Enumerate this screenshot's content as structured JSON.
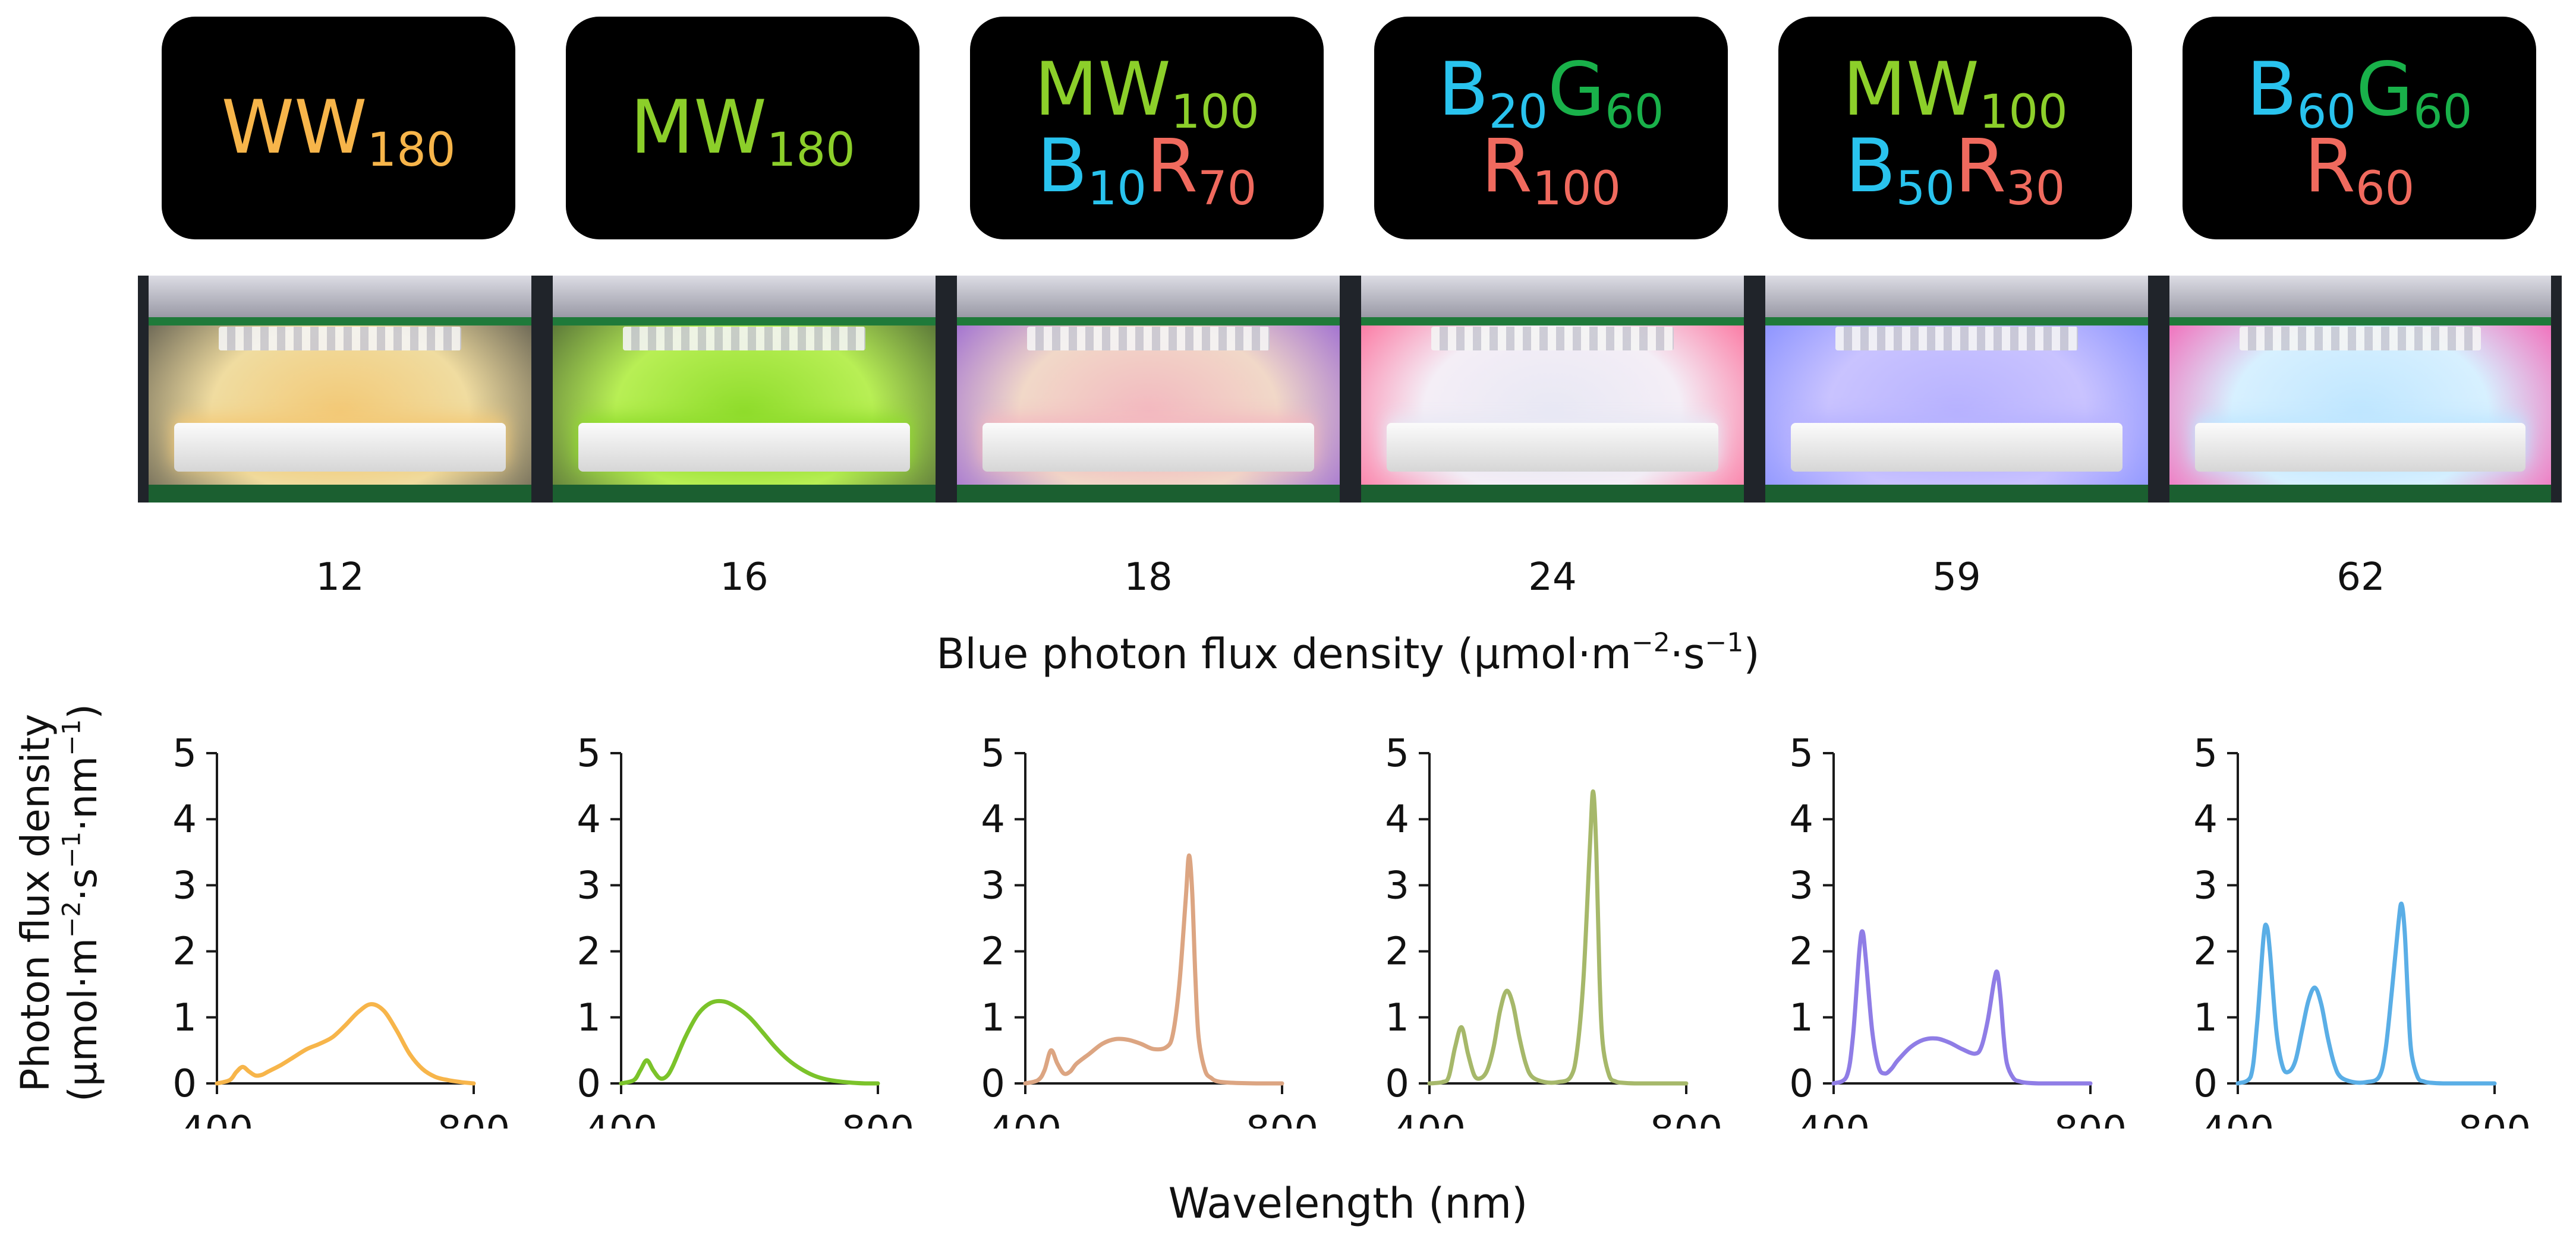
{
  "treatments": [
    {
      "lines": [
        [
          {
            "text": "WW",
            "sub": "180",
            "color": "#f7b54a"
          }
        ]
      ]
    },
    {
      "lines": [
        [
          {
            "text": "MW",
            "sub": "180",
            "color": "#8ccf2a"
          }
        ]
      ]
    },
    {
      "lines": [
        [
          {
            "text": "MW",
            "sub": "100",
            "color": "#8ccf2a"
          }
        ],
        [
          {
            "text": "B",
            "sub": "10",
            "color": "#29c3ee"
          },
          {
            "text": "R",
            "sub": "70",
            "color": "#f06a5e"
          }
        ]
      ]
    },
    {
      "lines": [
        [
          {
            "text": "B",
            "sub": "20",
            "color": "#29c3ee"
          },
          {
            "text": "G",
            "sub": "60",
            "color": "#19b14a"
          }
        ],
        [
          {
            "text": "R",
            "sub": "100",
            "color": "#f06a5e"
          }
        ]
      ]
    },
    {
      "lines": [
        [
          {
            "text": "MW",
            "sub": "100",
            "color": "#8ccf2a"
          }
        ],
        [
          {
            "text": "B",
            "sub": "50",
            "color": "#29c3ee"
          },
          {
            "text": "R",
            "sub": "30",
            "color": "#f06a5e"
          }
        ]
      ]
    },
    {
      "lines": [
        [
          {
            "text": "B",
            "sub": "60",
            "color": "#29c3ee"
          },
          {
            "text": "G",
            "sub": "60",
            "color": "#19b14a"
          }
        ],
        [
          {
            "text": "R",
            "sub": "60",
            "color": "#f06a5e"
          }
        ]
      ]
    }
  ],
  "photos": [
    {
      "wall": "#f0dca0",
      "glow": "#f3c977",
      "side": "#2a2d30"
    },
    {
      "wall": "#b8ef55",
      "glow": "#8fdc2c",
      "side": "#2b3a2a"
    },
    {
      "wall": "#f1d8c8",
      "glow": "#f3b9c0",
      "side": "#7a3fd6"
    },
    {
      "wall": "#f4eef6",
      "glow": "#e8e8f4",
      "side": "#ff3f7a"
    },
    {
      "wall": "#c9c3ff",
      "glow": "#b7b2ff",
      "side": "#6e7cff"
    },
    {
      "wall": "#d7f0ff",
      "glow": "#bfe6ff",
      "side": "#ff2f9a"
    }
  ],
  "blue_pfd_values": [
    "12",
    "16",
    "18",
    "24",
    "59",
    "62"
  ],
  "blue_pfd_caption": {
    "text": "Blue photon flux density (µmol·m",
    "exp1": "−2",
    "mid": "·s",
    "exp2": "−1",
    "end": ")"
  },
  "y_axis_label": {
    "line1": "Photon flux density",
    "line2_pre": "(µmol·m",
    "line2_exp1": "−2",
    "line2_mid": "·s",
    "line2_exp2": "−1",
    "line2_mid2": "·nm",
    "line2_exp3": "−1",
    "line2_end": ")"
  },
  "x_axis_label": "Wavelength (nm)",
  "chart_data": [
    {
      "type": "line",
      "name": "WW180",
      "color": "#f7b54a",
      "xlim": [
        400,
        800
      ],
      "ylim": [
        0,
        5
      ],
      "xticks": [
        "400",
        "800"
      ],
      "yticks": [
        "0",
        "1",
        "2",
        "3",
        "4",
        "5"
      ],
      "x": [
        400,
        420,
        430,
        440,
        450,
        460,
        470,
        480,
        500,
        520,
        540,
        560,
        580,
        600,
        620,
        640,
        660,
        680,
        700,
        720,
        740,
        760,
        780,
        800
      ],
      "y": [
        0,
        0.05,
        0.17,
        0.25,
        0.18,
        0.12,
        0.13,
        0.18,
        0.28,
        0.4,
        0.52,
        0.6,
        0.7,
        0.88,
        1.08,
        1.2,
        1.1,
        0.8,
        0.45,
        0.22,
        0.1,
        0.05,
        0.02,
        0
      ]
    },
    {
      "type": "line",
      "name": "MW180",
      "color": "#7bc32a",
      "xlim": [
        400,
        800
      ],
      "ylim": [
        0,
        5
      ],
      "xticks": [
        "400",
        "800"
      ],
      "yticks": [
        "0",
        "1",
        "2",
        "3",
        "4",
        "5"
      ],
      "x": [
        400,
        420,
        430,
        440,
        450,
        460,
        470,
        480,
        500,
        520,
        540,
        560,
        580,
        600,
        620,
        640,
        660,
        680,
        700,
        720,
        740,
        760,
        780,
        800
      ],
      "y": [
        0,
        0.05,
        0.2,
        0.35,
        0.2,
        0.08,
        0.1,
        0.25,
        0.7,
        1.05,
        1.22,
        1.24,
        1.15,
        1.0,
        0.78,
        0.55,
        0.36,
        0.22,
        0.12,
        0.06,
        0.03,
        0.01,
        0,
        0
      ]
    },
    {
      "type": "line",
      "name": "MW100 B10R70",
      "color": "#dca582",
      "xlim": [
        400,
        800
      ],
      "ylim": [
        0,
        5
      ],
      "xticks": [
        "400",
        "800"
      ],
      "yticks": [
        "0",
        "1",
        "2",
        "3",
        "4",
        "5"
      ],
      "x": [
        400,
        420,
        430,
        440,
        450,
        460,
        470,
        480,
        500,
        520,
        540,
        560,
        580,
        600,
        620,
        630,
        640,
        650,
        655,
        660,
        665,
        670,
        680,
        690,
        700,
        720,
        760,
        800
      ],
      "y": [
        0,
        0.05,
        0.2,
        0.5,
        0.3,
        0.15,
        0.18,
        0.3,
        0.45,
        0.6,
        0.67,
        0.66,
        0.6,
        0.52,
        0.55,
        0.75,
        1.5,
        2.8,
        3.45,
        2.9,
        1.6,
        0.7,
        0.2,
        0.08,
        0.03,
        0.01,
        0,
        0
      ]
    },
    {
      "type": "line",
      "name": "B20G60 R100",
      "color": "#a6b86a",
      "xlim": [
        400,
        800
      ],
      "ylim": [
        0,
        5
      ],
      "xticks": [
        "400",
        "800"
      ],
      "yticks": [
        "0",
        "1",
        "2",
        "3",
        "4",
        "5"
      ],
      "x": [
        400,
        420,
        430,
        440,
        450,
        460,
        470,
        480,
        490,
        500,
        510,
        520,
        530,
        540,
        550,
        560,
        580,
        600,
        620,
        630,
        640,
        650,
        655,
        660,
        665,
        670,
        680,
        690,
        700,
        720,
        760,
        800
      ],
      "y": [
        0,
        0.02,
        0.1,
        0.55,
        0.85,
        0.45,
        0.12,
        0.08,
        0.2,
        0.55,
        1.1,
        1.4,
        1.2,
        0.7,
        0.3,
        0.1,
        0.02,
        0.02,
        0.1,
        0.5,
        1.6,
        3.6,
        4.42,
        3.5,
        1.6,
        0.6,
        0.12,
        0.03,
        0.01,
        0,
        0,
        0
      ]
    },
    {
      "type": "line",
      "name": "MW100 B50R30",
      "color": "#8f7de6",
      "xlim": [
        400,
        800
      ],
      "ylim": [
        0,
        5
      ],
      "xticks": [
        "400",
        "800"
      ],
      "yticks": [
        "0",
        "1",
        "2",
        "3",
        "4",
        "5"
      ],
      "x": [
        400,
        420,
        430,
        440,
        445,
        450,
        460,
        470,
        480,
        490,
        500,
        520,
        540,
        560,
        580,
        600,
        620,
        630,
        640,
        650,
        655,
        660,
        665,
        670,
        680,
        690,
        700,
        720,
        760,
        800
      ],
      "y": [
        0,
        0.1,
        0.7,
        2.0,
        2.3,
        1.9,
        0.8,
        0.25,
        0.15,
        0.22,
        0.35,
        0.55,
        0.66,
        0.68,
        0.62,
        0.52,
        0.45,
        0.55,
        0.95,
        1.55,
        1.68,
        1.3,
        0.7,
        0.3,
        0.08,
        0.03,
        0.01,
        0,
        0,
        0
      ]
    },
    {
      "type": "line",
      "name": "B60G60 R60",
      "color": "#5aaee6",
      "xlim": [
        400,
        800
      ],
      "ylim": [
        0,
        5
      ],
      "xticks": [
        "400",
        "800"
      ],
      "yticks": [
        "0",
        "1",
        "2",
        "3",
        "4",
        "5"
      ],
      "x": [
        400,
        420,
        430,
        440,
        445,
        450,
        460,
        470,
        480,
        490,
        500,
        510,
        520,
        530,
        540,
        550,
        560,
        580,
        600,
        620,
        630,
        640,
        650,
        655,
        660,
        665,
        670,
        680,
        690,
        700,
        720,
        760,
        800
      ],
      "y": [
        0,
        0.1,
        0.9,
        2.2,
        2.38,
        2.0,
        0.8,
        0.25,
        0.18,
        0.35,
        0.8,
        1.25,
        1.45,
        1.2,
        0.7,
        0.3,
        0.1,
        0.02,
        0.02,
        0.1,
        0.5,
        1.4,
        2.4,
        2.72,
        2.3,
        1.3,
        0.5,
        0.1,
        0.03,
        0.01,
        0,
        0,
        0
      ]
    }
  ]
}
